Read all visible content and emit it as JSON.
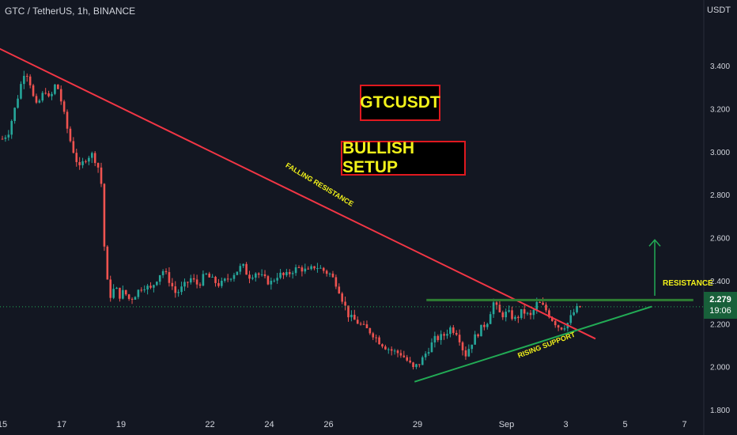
{
  "header": {
    "symbol": "GTC / TetherUS, 1h, BINANCE",
    "currency": "USDT"
  },
  "labels": {
    "title_box": "GTCUSDT",
    "setup_box": "BULLISH SETUP",
    "falling_resistance": "FALLING RESISTANCE",
    "rising_support": "RISING SUPPORT",
    "resistance": "RESISTANCE"
  },
  "price_tag": {
    "price": "2.279",
    "countdown": "19:06"
  },
  "colors": {
    "background": "#131722",
    "up_candle": "#26a69a",
    "down_candle": "#ef5350",
    "falling_line": "#f23645",
    "support_line": "#22ab55",
    "resistance_line": "#2e7d32",
    "arrow": "#22ab55",
    "annotation_text": "#f2f21a",
    "price_tag": "#18603a"
  },
  "chart_data": {
    "type": "candlestick",
    "symbol": "GTC / TetherUS",
    "timeframe": "1h",
    "exchange": "BINANCE",
    "currency": "USDT",
    "ylim": [
      1.8,
      3.5
    ],
    "y_ticks": [
      "3.400",
      "3.200",
      "3.000",
      "2.800",
      "2.600",
      "2.400",
      "2.200",
      "2.000",
      "1.800"
    ],
    "x_ticks": [
      {
        "label": "15",
        "day": 0
      },
      {
        "label": "17",
        "day": 2
      },
      {
        "label": "19",
        "day": 4
      },
      {
        "label": "22",
        "day": 7
      },
      {
        "label": "24",
        "day": 9
      },
      {
        "label": "26",
        "day": 11
      },
      {
        "label": "29",
        "day": 14
      },
      {
        "label": "Sep",
        "day": 17
      },
      {
        "label": "3",
        "day": 19
      },
      {
        "label": "5",
        "day": 21
      },
      {
        "label": "7",
        "day": 23
      }
    ],
    "last_price": 2.279,
    "price_path": [
      [
        0.0,
        3.06
      ],
      [
        0.2,
        3.09
      ],
      [
        0.4,
        3.19
      ],
      [
        0.6,
        3.3
      ],
      [
        0.75,
        3.38
      ],
      [
        0.9,
        3.35
      ],
      [
        1.0,
        3.27
      ],
      [
        1.15,
        3.21
      ],
      [
        1.3,
        3.25
      ],
      [
        1.45,
        3.29
      ],
      [
        1.6,
        3.23
      ],
      [
        1.75,
        3.31
      ],
      [
        1.9,
        3.29
      ],
      [
        2.05,
        3.19
      ],
      [
        2.25,
        3.07
      ],
      [
        2.45,
        2.98
      ],
      [
        2.6,
        2.92
      ],
      [
        2.8,
        2.97
      ],
      [
        3.0,
        2.99
      ],
      [
        3.2,
        2.95
      ],
      [
        3.35,
        2.84
      ],
      [
        3.45,
        2.52
      ],
      [
        3.55,
        2.38
      ],
      [
        3.65,
        2.33
      ],
      [
        3.8,
        2.37
      ],
      [
        3.95,
        2.33
      ],
      [
        4.1,
        2.35
      ],
      [
        4.3,
        2.31
      ],
      [
        4.5,
        2.34
      ],
      [
        4.75,
        2.38
      ],
      [
        5.0,
        2.36
      ],
      [
        5.25,
        2.42
      ],
      [
        5.4,
        2.45
      ],
      [
        5.6,
        2.41
      ],
      [
        5.85,
        2.34
      ],
      [
        6.1,
        2.37
      ],
      [
        6.35,
        2.41
      ],
      [
        6.6,
        2.38
      ],
      [
        6.85,
        2.43
      ],
      [
        7.1,
        2.4
      ],
      [
        7.35,
        2.38
      ],
      [
        7.6,
        2.41
      ],
      [
        7.85,
        2.44
      ],
      [
        8.1,
        2.47
      ],
      [
        8.3,
        2.42
      ],
      [
        8.55,
        2.44
      ],
      [
        8.8,
        2.41
      ],
      [
        9.05,
        2.39
      ],
      [
        9.3,
        2.43
      ],
      [
        9.55,
        2.42
      ],
      [
        9.8,
        2.45
      ],
      [
        10.05,
        2.46
      ],
      [
        10.3,
        2.44
      ],
      [
        10.55,
        2.47
      ],
      [
        10.8,
        2.45
      ],
      [
        11.05,
        2.43
      ],
      [
        11.3,
        2.38
      ],
      [
        11.5,
        2.3
      ],
      [
        11.7,
        2.23
      ],
      [
        11.95,
        2.21
      ],
      [
        12.2,
        2.18
      ],
      [
        12.45,
        2.16
      ],
      [
        12.7,
        2.12
      ],
      [
        12.95,
        2.09
      ],
      [
        13.2,
        2.07
      ],
      [
        13.45,
        2.06
      ],
      [
        13.7,
        2.02
      ],
      [
        13.85,
        1.99
      ],
      [
        14.1,
        2.02
      ],
      [
        14.35,
        2.08
      ],
      [
        14.6,
        2.13
      ],
      [
        14.85,
        2.14
      ],
      [
        15.1,
        2.18
      ],
      [
        15.35,
        2.16
      ],
      [
        15.6,
        2.05
      ],
      [
        15.85,
        2.12
      ],
      [
        16.1,
        2.17
      ],
      [
        16.35,
        2.21
      ],
      [
        16.55,
        2.3
      ],
      [
        16.8,
        2.24
      ],
      [
        17.05,
        2.25
      ],
      [
        17.3,
        2.22
      ],
      [
        17.55,
        2.26
      ],
      [
        17.8,
        2.23
      ],
      [
        18.05,
        2.3
      ],
      [
        18.3,
        2.27
      ],
      [
        18.55,
        2.22
      ],
      [
        18.8,
        2.18
      ],
      [
        19.05,
        2.2
      ],
      [
        19.3,
        2.26
      ],
      [
        19.5,
        2.28
      ]
    ],
    "annotations": {
      "falling_resistance": {
        "start": [
          -0.1,
          3.48
        ],
        "end": [
          20.0,
          2.13
        ]
      },
      "rising_support": {
        "start": [
          13.9,
          1.93
        ],
        "end": [
          21.9,
          2.28
        ]
      },
      "resistance": {
        "start": [
          14.3,
          2.31
        ],
        "end": [
          23.3,
          2.31
        ]
      },
      "target_arrow": {
        "day": 22.0,
        "from": 2.33,
        "to": 2.59
      }
    }
  }
}
